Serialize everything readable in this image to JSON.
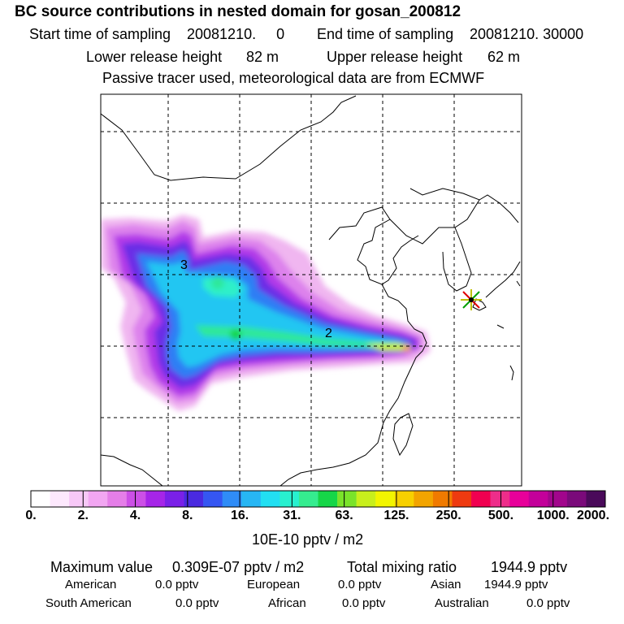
{
  "header": {
    "title": "BC  source contributions in nested domain for gosan_200812",
    "start_time_label": "Start time of sampling",
    "start_time_value": "20081210.     0",
    "end_time_label": "End time of sampling",
    "end_time_value": "20081210. 30000",
    "lower_release_label": "Lower release height",
    "lower_release_value": "82 m",
    "upper_release_label": "Upper release height",
    "upper_release_value": "62 m",
    "tracer_note": "Passive tracer used, meteorological data are from ECMWF"
  },
  "map": {
    "region_labels": [
      {
        "id": "3",
        "text": "3"
      },
      {
        "id": "2",
        "text": "2"
      }
    ],
    "receptor": {
      "name": "gosan",
      "marker": "star-icon"
    }
  },
  "colorbar": {
    "colors": [
      "#ffffff",
      "#fde8fd",
      "#f7c8f7",
      "#f2a6f2",
      "#e57ee8",
      "#cc4fe6",
      "#a625e8",
      "#7a20e8",
      "#4a2ae0",
      "#3556f2",
      "#2f8cf7",
      "#27b6f4",
      "#22dff2",
      "#28f0cf",
      "#35ec8f",
      "#16d648",
      "#7ae32a",
      "#c8ef1c",
      "#f2f500",
      "#f7d000",
      "#f2a400",
      "#f07a00",
      "#ee3a10",
      "#f00050",
      "#ee2d8a",
      "#e8009a",
      "#c3009a",
      "#a2058c",
      "#7a0a7a",
      "#4a0a5a"
    ],
    "tick_labels": [
      "0.",
      "2.",
      "4.",
      "8.",
      "16.",
      "31.",
      "63.",
      "125.",
      "250.",
      "500.",
      "1000.",
      "2000."
    ],
    "units": "10E-10 pptv / m2"
  },
  "stats": {
    "max_label": "Maximum value",
    "max_value": "0.309E-07 pptv / m2",
    "total_label": "Total mixing ratio",
    "total_value": "1944.9 pptv",
    "sources": [
      {
        "name": "American",
        "value": "0.0 pptv"
      },
      {
        "name": "European",
        "value": "0.0 pptv"
      },
      {
        "name": "Asian",
        "value": "1944.9 pptv"
      },
      {
        "name": "South American",
        "value": "0.0 pptv"
      },
      {
        "name": "African",
        "value": "0.0 pptv"
      },
      {
        "name": "Australian",
        "value": "0.0 pptv"
      }
    ]
  }
}
